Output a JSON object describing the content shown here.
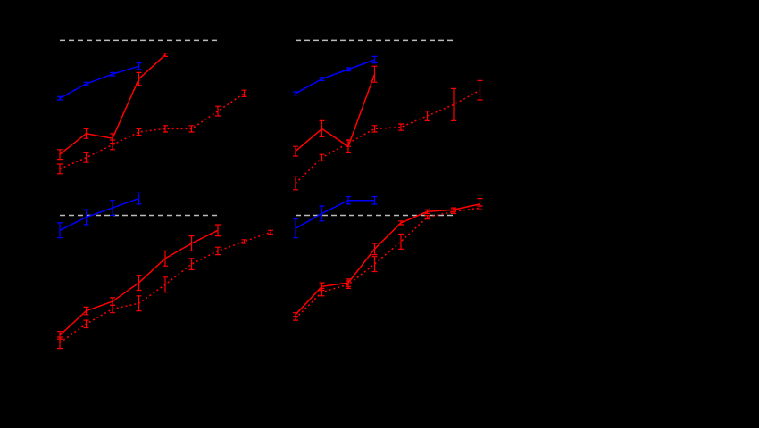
{
  "chart_data": [
    {
      "type": "line",
      "categories": [
        null,
        null,
        null,
        null,
        null,
        null,
        null,
        null,
        null
      ],
      "ylim": [
        0,
        100
      ],
      "series": [
        {
          "color": "#bbbbbb",
          "style": "dashed",
          "values": [
            97,
            97,
            97,
            97,
            97,
            97,
            97,
            null,
            null
          ]
        },
        {
          "color": "#0000ff",
          "style": "solid",
          "values": [
            61,
            70,
            76,
            81,
            null,
            null,
            null,
            null,
            null
          ],
          "errors": [
            1,
            1,
            1,
            2,
            null,
            null,
            null,
            null,
            null
          ]
        },
        {
          "color": "#ff0000",
          "style": "solid",
          "values": [
            26,
            39,
            36,
            73,
            88,
            null,
            null,
            null,
            null
          ],
          "errors": [
            3,
            3,
            3,
            4,
            1,
            null,
            null,
            null,
            null
          ]
        },
        {
          "color": "#ff0000",
          "style": "dotted",
          "values": [
            17,
            24,
            32,
            40,
            42,
            42,
            53,
            64,
            null
          ],
          "errors": [
            3,
            3,
            3,
            2,
            2,
            2,
            3,
            2,
            null
          ]
        }
      ]
    },
    {
      "type": "line",
      "categories": [
        null,
        null,
        null,
        null,
        null,
        null,
        null,
        null,
        null
      ],
      "ylim": [
        0,
        100
      ],
      "series": [
        {
          "color": "#bbbbbb",
          "style": "dashed",
          "values": [
            97,
            97,
            97,
            97,
            97,
            97,
            97,
            null,
            null
          ]
        },
        {
          "color": "#0000ff",
          "style": "solid",
          "values": [
            64,
            73,
            79,
            85,
            null,
            null,
            null,
            null,
            null
          ],
          "errors": [
            1,
            1,
            1,
            2,
            null,
            null,
            null,
            null,
            null
          ]
        },
        {
          "color": "#ff0000",
          "style": "solid",
          "values": [
            28,
            42,
            31,
            76,
            null,
            null,
            null,
            null,
            null
          ],
          "errors": [
            3,
            5,
            4,
            5,
            null,
            null,
            null,
            null,
            null
          ]
        },
        {
          "color": "#ff0000",
          "style": "dotted",
          "values": [
            8,
            24,
            33,
            42,
            43,
            50,
            57,
            66,
            null
          ],
          "errors": [
            4,
            2,
            2,
            2,
            2,
            3,
            10,
            6,
            null
          ]
        }
      ]
    },
    {
      "type": "line",
      "categories": [
        null,
        null,
        null,
        null,
        null,
        null,
        null,
        null,
        null
      ],
      "ylim": [
        0,
        100
      ],
      "series": [
        {
          "color": "#bbbbbb",
          "style": "dashed",
          "values": [
            85,
            85,
            85,
            85,
            85,
            85,
            85,
            null,
            null
          ]
        },
        {
          "color": "#0000ff",
          "style": "solid",
          "values": [
            77,
            84,
            89,
            94,
            null,
            null,
            null,
            null,
            null
          ],
          "errors": [
            4,
            4,
            4,
            3,
            null,
            null,
            null,
            null,
            null
          ]
        },
        {
          "color": "#ff0000",
          "style": "solid",
          "values": [
            21,
            34,
            39,
            49,
            62,
            70,
            77,
            null,
            null
          ],
          "errors": [
            2,
            2,
            2,
            4,
            4,
            4,
            3,
            null,
            null
          ]
        },
        {
          "color": "#ff0000",
          "style": "dotted",
          "values": [
            17,
            27,
            35,
            38,
            48,
            59,
            66,
            71,
            76
          ],
          "errors": [
            3,
            2,
            2,
            4,
            4,
            3,
            2,
            1,
            1
          ]
        }
      ]
    },
    {
      "type": "line",
      "categories": [
        null,
        null,
        null,
        null,
        null,
        null,
        null,
        null,
        null
      ],
      "ylim": [
        0,
        100
      ],
      "series": [
        {
          "color": "#bbbbbb",
          "style": "dashed",
          "values": [
            85,
            85,
            85,
            85,
            85,
            85,
            85,
            null,
            null
          ]
        },
        {
          "color": "#0000ff",
          "style": "solid",
          "values": [
            78,
            86,
            93,
            93,
            null,
            null,
            null,
            null,
            null
          ],
          "errors": [
            5,
            4,
            2,
            2,
            null,
            null,
            null,
            null,
            null
          ]
        },
        {
          "color": "#ff0000",
          "style": "solid",
          "values": [
            32,
            47,
            49,
            67,
            81,
            87,
            88,
            91,
            null
          ],
          "errors": [
            1,
            2,
            2,
            3,
            1,
            1,
            1,
            3,
            null
          ]
        },
        {
          "color": "#ff0000",
          "style": "dotted",
          "values": [
            30,
            44,
            48,
            59,
            71,
            84,
            87,
            89,
            null
          ],
          "errors": [
            1,
            2,
            2,
            4,
            4,
            1,
            1,
            1,
            null
          ]
        }
      ]
    }
  ]
}
